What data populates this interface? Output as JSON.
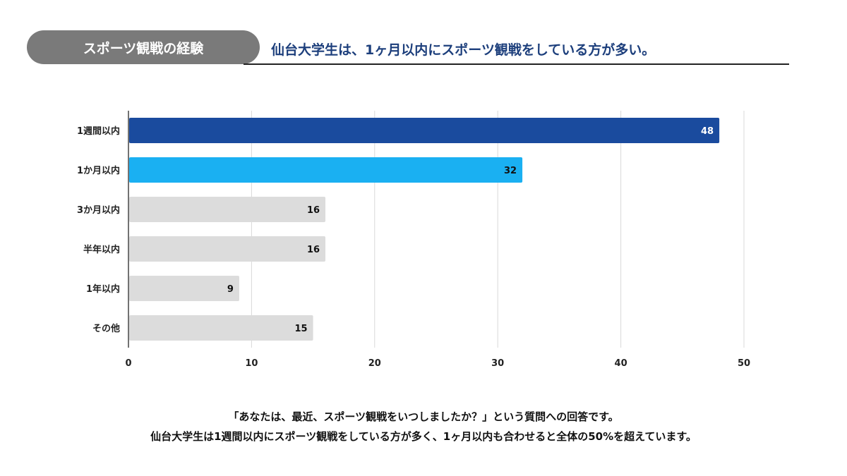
{
  "header": {
    "section_label": "スポーツ観戦の経験",
    "headline": "仙台大学生は、1ヶ月以内にスポーツ観戦をしている方が多い。"
  },
  "chart_data": {
    "type": "bar",
    "orientation": "horizontal",
    "categories": [
      "1週間以内",
      "1か月以内",
      "3か月以内",
      "半年以内",
      "1年以内",
      "その他"
    ],
    "values": [
      48,
      32,
      16,
      16,
      9,
      15
    ],
    "colors": [
      "#1a4b9e",
      "#1ab0f2",
      "#dcdcdc",
      "#dcdcdc",
      "#dcdcdc",
      "#dcdcdc"
    ],
    "label_colors": [
      "#ffffff",
      "#111111",
      "#111111",
      "#111111",
      "#111111",
      "#111111"
    ],
    "xlim": [
      0,
      50
    ],
    "xticks": [
      0,
      10,
      20,
      30,
      40,
      50
    ],
    "grid": true,
    "title": "",
    "xlabel": "",
    "ylabel": ""
  },
  "notes": {
    "line1": "「あなたは、最近、スポーツ観戦をいつしましたか？」という質問への回答です。",
    "line2": "仙台大学生は1週間以内にスポーツ観戦をしている方が多く、1ヶ月以内も合わせると全体の50%を超えています。"
  }
}
